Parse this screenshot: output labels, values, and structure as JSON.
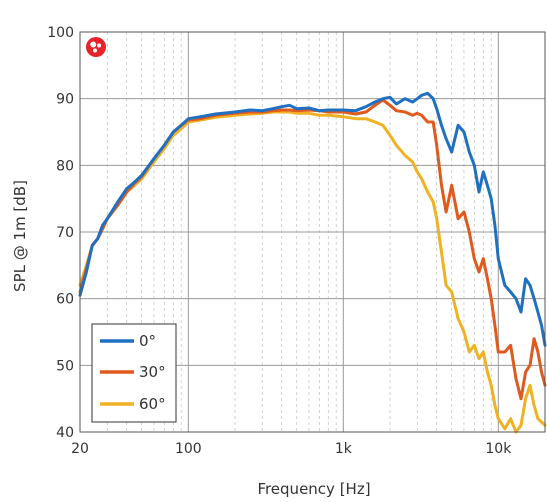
{
  "chart_data": {
    "type": "line",
    "xlabel": "Frequency [Hz]",
    "ylabel": "SPL @ 1m [dB]",
    "xscale": "log",
    "xlim": [
      20,
      20000
    ],
    "ylim": [
      40,
      100
    ],
    "grid": true,
    "legend_position": "bottom-left",
    "logo_icon": "red-speaker-logo-icon",
    "x_ticks": [
      {
        "value": 20,
        "label": "20"
      },
      {
        "value": 100,
        "label": "100"
      },
      {
        "value": 1000,
        "label": "1k"
      },
      {
        "value": 10000,
        "label": "10k"
      }
    ],
    "y_ticks": [
      {
        "value": 40,
        "label": "40"
      },
      {
        "value": 50,
        "label": "50"
      },
      {
        "value": 60,
        "label": "60"
      },
      {
        "value": 70,
        "label": "70"
      },
      {
        "value": 80,
        "label": "80"
      },
      {
        "value": 90,
        "label": "90"
      },
      {
        "value": 100,
        "label": "100"
      }
    ],
    "series": [
      {
        "name": "0°",
        "color": "#1f6fc2",
        "points": [
          [
            20,
            60.5
          ],
          [
            22,
            64
          ],
          [
            24,
            68
          ],
          [
            26,
            69
          ],
          [
            28,
            71
          ],
          [
            30,
            72
          ],
          [
            35,
            74.5
          ],
          [
            40,
            76.5
          ],
          [
            45,
            77.5
          ],
          [
            50,
            78.5
          ],
          [
            60,
            81
          ],
          [
            70,
            83
          ],
          [
            80,
            85
          ],
          [
            90,
            86
          ],
          [
            100,
            87
          ],
          [
            120,
            87.3
          ],
          [
            150,
            87.7
          ],
          [
            200,
            88
          ],
          [
            250,
            88.3
          ],
          [
            300,
            88.2
          ],
          [
            350,
            88.5
          ],
          [
            400,
            88.8
          ],
          [
            450,
            89
          ],
          [
            500,
            88.5
          ],
          [
            600,
            88.6
          ],
          [
            700,
            88.2
          ],
          [
            800,
            88.3
          ],
          [
            1000,
            88.3
          ],
          [
            1200,
            88.2
          ],
          [
            1400,
            88.8
          ],
          [
            1600,
            89.5
          ],
          [
            1800,
            90
          ],
          [
            2000,
            90.2
          ],
          [
            2200,
            89.2
          ],
          [
            2500,
            90
          ],
          [
            2800,
            89.5
          ],
          [
            3000,
            90
          ],
          [
            3200,
            90.5
          ],
          [
            3500,
            90.8
          ],
          [
            3800,
            90
          ],
          [
            4000,
            88.5
          ],
          [
            4300,
            86
          ],
          [
            4600,
            84
          ],
          [
            5000,
            82
          ],
          [
            5500,
            86
          ],
          [
            6000,
            85
          ],
          [
            6500,
            82
          ],
          [
            7000,
            80
          ],
          [
            7500,
            76
          ],
          [
            8000,
            79
          ],
          [
            8500,
            77
          ],
          [
            9000,
            75
          ],
          [
            9500,
            71
          ],
          [
            10000,
            66
          ],
          [
            11000,
            62
          ],
          [
            12000,
            61
          ],
          [
            13000,
            60
          ],
          [
            14000,
            58
          ],
          [
            15000,
            63
          ],
          [
            16000,
            62
          ],
          [
            17000,
            60
          ],
          [
            18000,
            58
          ],
          [
            19000,
            56
          ],
          [
            20000,
            53
          ]
        ]
      },
      {
        "name": "30°",
        "color": "#e05a1e",
        "points": [
          [
            20,
            61
          ],
          [
            22,
            64.5
          ],
          [
            24,
            68
          ],
          [
            26,
            69
          ],
          [
            28,
            70.5
          ],
          [
            30,
            72
          ],
          [
            35,
            74
          ],
          [
            40,
            76
          ],
          [
            45,
            77.3
          ],
          [
            50,
            78.3
          ],
          [
            60,
            81
          ],
          [
            70,
            83
          ],
          [
            80,
            85
          ],
          [
            90,
            86
          ],
          [
            100,
            86.8
          ],
          [
            120,
            87
          ],
          [
            150,
            87.5
          ],
          [
            200,
            87.8
          ],
          [
            250,
            88
          ],
          [
            300,
            88
          ],
          [
            350,
            88.2
          ],
          [
            400,
            88.3
          ],
          [
            450,
            88.3
          ],
          [
            500,
            88.2
          ],
          [
            600,
            88.3
          ],
          [
            700,
            88.2
          ],
          [
            800,
            88
          ],
          [
            1000,
            88
          ],
          [
            1200,
            87.7
          ],
          [
            1400,
            88
          ],
          [
            1600,
            89
          ],
          [
            1800,
            89.8
          ],
          [
            2000,
            89
          ],
          [
            2200,
            88.2
          ],
          [
            2500,
            88
          ],
          [
            2800,
            87.5
          ],
          [
            3000,
            87.8
          ],
          [
            3200,
            87.5
          ],
          [
            3500,
            86.5
          ],
          [
            3800,
            86.5
          ],
          [
            4000,
            83
          ],
          [
            4300,
            77
          ],
          [
            4600,
            73
          ],
          [
            5000,
            77
          ],
          [
            5500,
            72
          ],
          [
            6000,
            73
          ],
          [
            6500,
            70
          ],
          [
            7000,
            66
          ],
          [
            7500,
            64
          ],
          [
            8000,
            66
          ],
          [
            8500,
            63
          ],
          [
            9000,
            60
          ],
          [
            9500,
            56
          ],
          [
            10000,
            52
          ],
          [
            11000,
            52
          ],
          [
            12000,
            53
          ],
          [
            13000,
            48
          ],
          [
            14000,
            45
          ],
          [
            15000,
            49
          ],
          [
            16000,
            50
          ],
          [
            17000,
            54
          ],
          [
            18000,
            52
          ],
          [
            19000,
            49
          ],
          [
            20000,
            47
          ]
        ]
      },
      {
        "name": "60°",
        "color": "#f0b223",
        "points": [
          [
            20,
            62
          ],
          [
            22,
            65
          ],
          [
            24,
            68
          ],
          [
            26,
            69
          ],
          [
            28,
            70.5
          ],
          [
            30,
            72
          ],
          [
            35,
            74
          ],
          [
            40,
            76
          ],
          [
            45,
            77
          ],
          [
            50,
            78
          ],
          [
            60,
            80.5
          ],
          [
            70,
            82.5
          ],
          [
            80,
            84.5
          ],
          [
            90,
            85.5
          ],
          [
            100,
            86.5
          ],
          [
            120,
            86.8
          ],
          [
            150,
            87.2
          ],
          [
            200,
            87.5
          ],
          [
            250,
            87.7
          ],
          [
            300,
            87.8
          ],
          [
            350,
            88
          ],
          [
            400,
            88
          ],
          [
            450,
            88
          ],
          [
            500,
            87.8
          ],
          [
            600,
            87.8
          ],
          [
            700,
            87.5
          ],
          [
            800,
            87.5
          ],
          [
            1000,
            87.3
          ],
          [
            1200,
            87
          ],
          [
            1400,
            87
          ],
          [
            1600,
            86.5
          ],
          [
            1800,
            86
          ],
          [
            2000,
            84.5
          ],
          [
            2200,
            83
          ],
          [
            2500,
            81.5
          ],
          [
            2800,
            80.5
          ],
          [
            3000,
            79
          ],
          [
            3200,
            78
          ],
          [
            3500,
            76
          ],
          [
            3800,
            74.5
          ],
          [
            4000,
            72
          ],
          [
            4300,
            67
          ],
          [
            4600,
            62
          ],
          [
            5000,
            61
          ],
          [
            5500,
            57
          ],
          [
            6000,
            55
          ],
          [
            6500,
            52
          ],
          [
            7000,
            53
          ],
          [
            7500,
            51
          ],
          [
            8000,
            52
          ],
          [
            8500,
            49
          ],
          [
            9000,
            47
          ],
          [
            9500,
            44
          ],
          [
            10000,
            42
          ],
          [
            11000,
            40.5
          ],
          [
            12000,
            42
          ],
          [
            13000,
            40
          ],
          [
            14000,
            41
          ],
          [
            15000,
            45
          ],
          [
            16000,
            47
          ],
          [
            17000,
            44
          ],
          [
            18000,
            42
          ],
          [
            19000,
            41.5
          ],
          [
            20000,
            41
          ]
        ]
      }
    ]
  }
}
